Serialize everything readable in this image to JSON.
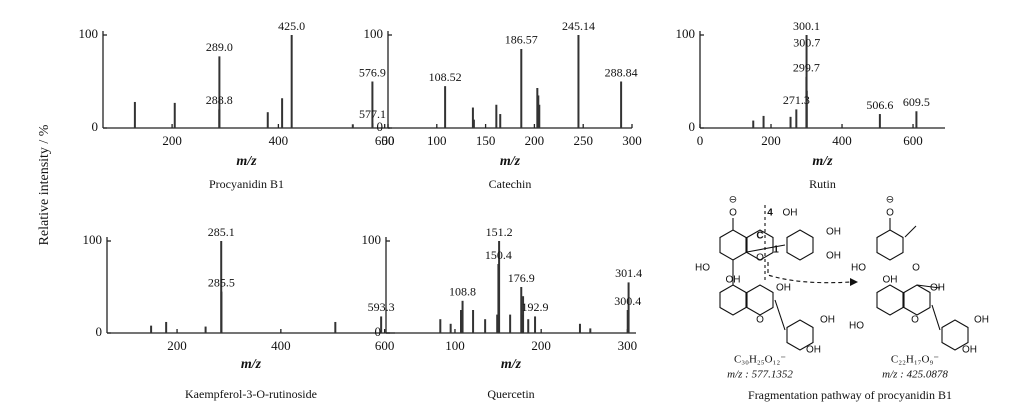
{
  "y_axis_label": "Relative intensity / %",
  "chart_data": [
    {
      "type": "stem",
      "title": "Procyanidin B1",
      "xlabel": "m/z",
      "color": "#333333",
      "x": [
        130,
        205,
        288.8,
        289.0,
        380,
        407,
        425.0,
        540,
        576.9,
        577.1
      ],
      "values": [
        28,
        27,
        20,
        77,
        17,
        32,
        100,
        4,
        50,
        5
      ],
      "peak_labels": [
        null,
        null,
        "288.8",
        "289.0",
        null,
        null,
        "425.0",
        null,
        "576.9",
        "577.1"
      ],
      "xlim": [
        70,
        610
      ],
      "xticks": [
        200,
        400,
        600
      ],
      "ylim": [
        0,
        100
      ],
      "yticks": [
        0,
        100
      ]
    },
    {
      "type": "stem",
      "title": "Catechin",
      "xlabel": "m/z",
      "color": "#333333",
      "x": [
        108.52,
        137,
        138,
        161,
        165,
        186.57,
        203,
        204,
        205,
        245.14,
        288.84
      ],
      "values": [
        45,
        22,
        9,
        25,
        15,
        85,
        43,
        35,
        25,
        100,
        50
      ],
      "peak_labels": [
        "108.52",
        null,
        null,
        null,
        null,
        "186.57",
        null,
        null,
        null,
        "245.14",
        "288.84"
      ],
      "xlim": [
        50,
        300
      ],
      "xticks": [
        50,
        100,
        150,
        200,
        250,
        300
      ],
      "ylim": [
        0,
        100
      ],
      "yticks": [
        0,
        100
      ]
    },
    {
      "type": "stem",
      "title": "Rutin",
      "xlabel": "m/z",
      "color": "#333333",
      "x": [
        150,
        179,
        255,
        271.3,
        299.7,
        300.1,
        300.7,
        506.6,
        609.5
      ],
      "values": [
        8,
        13,
        12,
        20,
        55,
        100,
        40,
        15,
        18
      ],
      "peak_labels": [
        null,
        null,
        null,
        "271.3",
        "299.7",
        "300.1",
        "300.7",
        "506.6",
        "609.5"
      ],
      "xlim": [
        0,
        690
      ],
      "xticks": [
        0,
        200,
        400,
        600
      ],
      "ylim": [
        0,
        100
      ],
      "yticks": [
        0,
        100
      ]
    },
    {
      "type": "stem",
      "title": "Kaempferol-3-O-rutinoside",
      "xlabel": "m/z",
      "color": "#333333",
      "x": [
        150,
        179,
        255,
        285.1,
        285.5,
        505,
        593.3
      ],
      "values": [
        8,
        12,
        7,
        100,
        45,
        12,
        18
      ],
      "peak_labels": [
        null,
        null,
        null,
        "285.1",
        "285.5",
        null,
        "593.3"
      ],
      "xlim": [
        65,
        620
      ],
      "xticks": [
        200,
        400,
        600
      ],
      "ylim": [
        0,
        100
      ],
      "yticks": [
        0,
        100
      ]
    },
    {
      "type": "stem",
      "title": "Quercetin",
      "xlabel": "m/z",
      "color": "#333333",
      "x": [
        83,
        95,
        107,
        108.8,
        121,
        135,
        149,
        150.4,
        151.2,
        164,
        176.9,
        178,
        179,
        185,
        192.9,
        245,
        257,
        300.4,
        301.4
      ],
      "values": [
        15,
        10,
        25,
        35,
        25,
        15,
        20,
        75,
        100,
        20,
        50,
        20,
        40,
        15,
        18,
        10,
        5,
        25,
        55
      ],
      "peak_labels": [
        null,
        null,
        null,
        "108.8",
        null,
        null,
        null,
        "150.4",
        "151.2",
        null,
        "176.9",
        null,
        null,
        null,
        "192.9",
        null,
        null,
        "300.4",
        "301.4"
      ],
      "xlim": [
        20,
        310
      ],
      "xticks": [
        100,
        200,
        300
      ],
      "ylim": [
        0,
        100
      ],
      "yticks": [
        0,
        100
      ]
    }
  ],
  "diagram": {
    "caption": "Fragmentation pathway of procyanidin B1",
    "left": {
      "formula": "C₃₀H₂₅O₁₂⁻",
      "mz": "m/z : 577.1352",
      "labels": [
        "⊖",
        "O",
        "4",
        "OH",
        "C",
        "O",
        "1",
        "OH",
        "OH",
        "HO",
        "OH",
        "O",
        "OH",
        "OH",
        "OH"
      ]
    },
    "right": {
      "formula": "C₂₂H₁₇O₉⁻",
      "mz": "m/z : 425.0878",
      "labels": [
        "⊖",
        "O",
        "O",
        "HO",
        "OH",
        "HO",
        "O",
        "OH",
        "OH",
        "OH"
      ]
    }
  }
}
